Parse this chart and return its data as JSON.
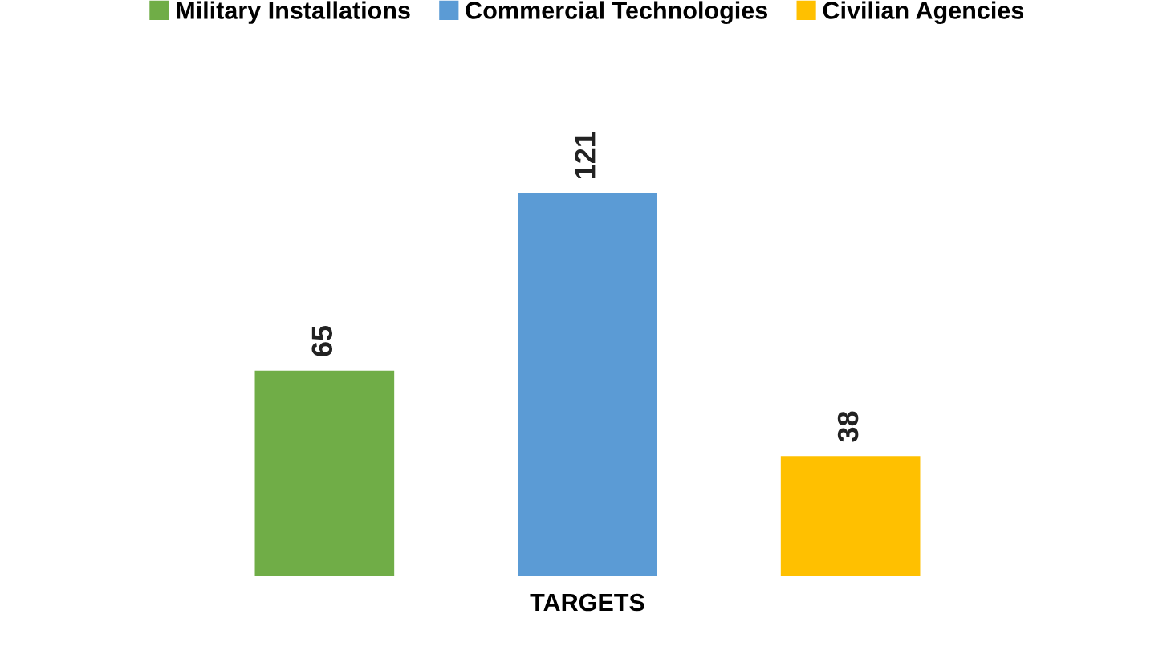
{
  "chart_data": {
    "type": "bar",
    "stacked": true,
    "xlabel": "TARGETS",
    "categories": [
      null,
      null,
      null
    ],
    "series": [
      {
        "name": "Military Installations",
        "color": "#70ad47",
        "values": [
          65,
          null,
          null
        ]
      },
      {
        "name": "Commercial Technologies",
        "color": "#5b9bd5",
        "values": [
          null,
          121,
          null
        ]
      },
      {
        "name": "Civilian Agencies",
        "color": "#ffc000",
        "values": [
          null,
          null,
          38
        ]
      }
    ],
    "data_labels": true,
    "legend": "top",
    "grid": false
  }
}
